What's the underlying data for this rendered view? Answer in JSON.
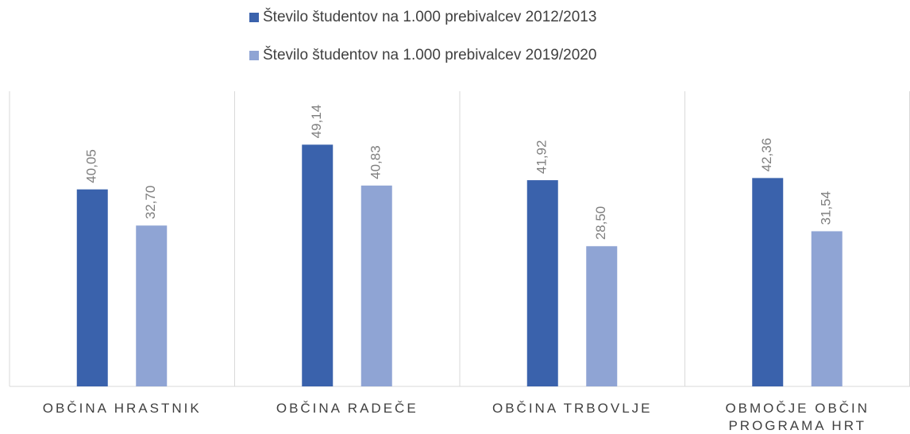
{
  "chart_data": {
    "type": "bar",
    "categories": [
      "OBČINA HRASTNIK",
      "OBČINA RADEČE",
      "OBČINA TRBOVLJE",
      "OBMOČJE OBČIN PROGRAMA HRT"
    ],
    "series": [
      {
        "name": "Število študentov na 1.000 prebivalcev 2012/2013",
        "color": "#3a62ac",
        "values": [
          40.05,
          49.14,
          41.92,
          42.36
        ],
        "value_labels": [
          "40,05",
          "49,14",
          "41,92",
          "42,36"
        ]
      },
      {
        "name": "Število študentov na 1.000 prebivalcev 2019/2020",
        "color": "#8fa4d4",
        "values": [
          32.7,
          40.83,
          28.5,
          31.54
        ],
        "value_labels": [
          "32,70",
          "40,83",
          "28,50",
          "31,54"
        ]
      }
    ],
    "ylim": [
      0,
      60
    ]
  }
}
